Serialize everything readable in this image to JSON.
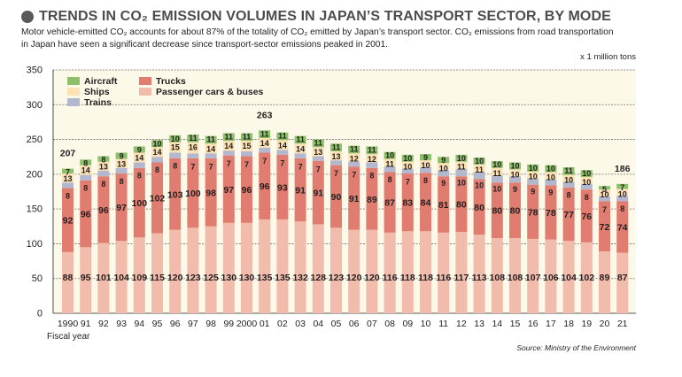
{
  "header": {
    "title": "TRENDS IN CO₂ EMISSION VOLUMES IN JAPAN’S TRANSPORT SECTOR, BY MODE",
    "subtitle_line1": "Motor vehicle-emitted CO₂ accounts for about 87% of the totality of CO₂ emitted by Japan’s transport sector.  CO₂ emissions from road transportation",
    "subtitle_line2": "in Japan have seen a significant decrease since transport-sector emissions peaked in 2001.",
    "unit": "x 1 million tons",
    "source": "Source: Ministry of the Environment"
  },
  "chart_data": {
    "type": "bar",
    "stacked": true,
    "title": "TRENDS IN CO₂ EMISSION VOLUMES IN JAPAN’S TRANSPORT SECTOR, BY MODE",
    "xlabel": "Fiscal year",
    "ylabel": "x 1 million tons",
    "ylim": [
      0,
      350
    ],
    "yticks": [
      0,
      50,
      100,
      150,
      200,
      250,
      300,
      350
    ],
    "categories": [
      "1990",
      "91",
      "92",
      "93",
      "94",
      "95",
      "96",
      "97",
      "98",
      "99",
      "2000",
      "01",
      "02",
      "03",
      "04",
      "05",
      "06",
      "07",
      "08",
      "09",
      "10",
      "11",
      "12",
      "13",
      "14",
      "15",
      "16",
      "17",
      "18",
      "19",
      "20",
      "21"
    ],
    "series": [
      {
        "name": "Passenger cars & buses",
        "color": "#f2bcac",
        "values": [
          88,
          95,
          101,
          104,
          109,
          115,
          120,
          123,
          125,
          130,
          130,
          135,
          135,
          132,
          128,
          123,
          120,
          120,
          116,
          118,
          118,
          116,
          117,
          113,
          108,
          108,
          107,
          106,
          104,
          102,
          89,
          87
        ]
      },
      {
        "name": "Trucks",
        "color": "#e17d70",
        "values": [
          92,
          96,
          96,
          97,
          100,
          102,
          103,
          100,
          98,
          97,
          96,
          96,
          93,
          91,
          91,
          90,
          91,
          89,
          87,
          83,
          84,
          81,
          80,
          80,
          80,
          80,
          78,
          78,
          77,
          76,
          72,
          74
        ]
      },
      {
        "name": "Trains",
        "color": "#b3b8cf",
        "values": [
          8,
          8,
          8,
          8,
          8,
          8,
          8,
          7,
          7,
          7,
          7,
          7,
          7,
          7,
          7,
          7,
          7,
          8,
          8,
          7,
          8,
          9,
          10,
          10,
          10,
          9,
          9,
          9,
          8,
          8,
          7,
          8
        ]
      },
      {
        "name": "Ships",
        "color": "#fde2b6",
        "values": [
          13,
          14,
          13,
          13,
          14,
          14,
          15,
          16,
          14,
          14,
          15,
          14,
          14,
          14,
          13,
          13,
          12,
          12,
          11,
          10,
          10,
          10,
          11,
          11,
          11,
          10,
          10,
          10,
          10,
          10,
          10,
          10
        ]
      },
      {
        "name": "Aircraft",
        "color": "#8cc06a",
        "values": [
          7,
          8,
          8,
          9,
          9,
          10,
          10,
          11,
          11,
          11,
          11,
          11,
          11,
          11,
          11,
          11,
          11,
          11,
          10,
          10,
          9,
          9,
          10,
          10,
          10,
          10,
          10,
          10,
          11,
          10,
          5,
          7
        ]
      }
    ],
    "totals": [
      {
        "category": "1990",
        "value": 207
      },
      {
        "category": "01",
        "value": 263
      },
      {
        "category": "21",
        "value": 186
      }
    ],
    "legend": [
      "Aircraft",
      "Ships",
      "Trains",
      "Trucks",
      "Passenger cars & buses"
    ],
    "legend_position": "top-left",
    "grid": true,
    "plot_background": "#fdf9e8"
  }
}
